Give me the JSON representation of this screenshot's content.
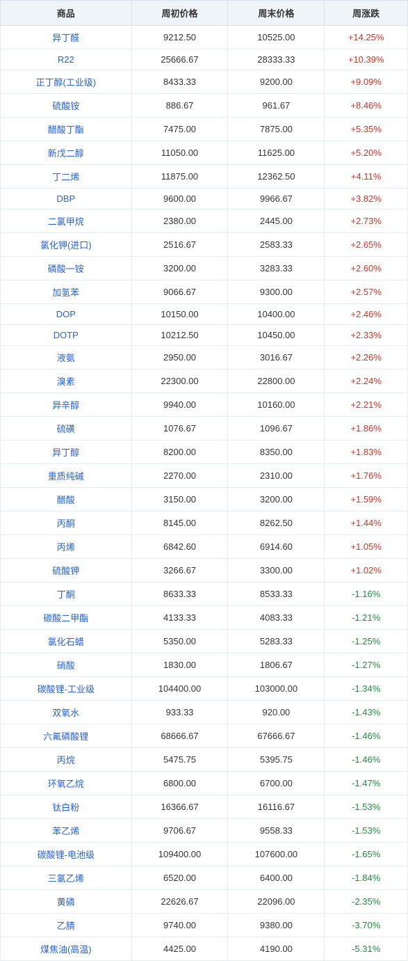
{
  "table": {
    "columns": [
      "商品",
      "周初价格",
      "周末价格",
      "周涨跌"
    ],
    "header_bg": "#eff4f9",
    "header_text_color": "#333333",
    "border_color": "#e8edf3",
    "commodity_text_color": "#2962c9",
    "positive_color": "#d93025",
    "negative_color": "#1e8e3e",
    "font_size": 13,
    "rows": [
      {
        "name": "异丁醛",
        "start": "9212.50",
        "end": "10525.00",
        "change": "+14.25%",
        "dir": "pos"
      },
      {
        "name": "R22",
        "start": "25666.67",
        "end": "28333.33",
        "change": "+10.39%",
        "dir": "pos"
      },
      {
        "name": "正丁醇(工业级)",
        "start": "8433.33",
        "end": "9200.00",
        "change": "+9.09%",
        "dir": "pos"
      },
      {
        "name": "硫酸铵",
        "start": "886.67",
        "end": "961.67",
        "change": "+8.46%",
        "dir": "pos"
      },
      {
        "name": "醋酸丁酯",
        "start": "7475.00",
        "end": "7875.00",
        "change": "+5.35%",
        "dir": "pos"
      },
      {
        "name": "新戊二醇",
        "start": "11050.00",
        "end": "11625.00",
        "change": "+5.20%",
        "dir": "pos"
      },
      {
        "name": "丁二烯",
        "start": "11875.00",
        "end": "12362.50",
        "change": "+4.11%",
        "dir": "pos"
      },
      {
        "name": "DBP",
        "start": "9600.00",
        "end": "9966.67",
        "change": "+3.82%",
        "dir": "pos"
      },
      {
        "name": "二氯甲烷",
        "start": "2380.00",
        "end": "2445.00",
        "change": "+2.73%",
        "dir": "pos"
      },
      {
        "name": "氯化钾(进口)",
        "start": "2516.67",
        "end": "2583.33",
        "change": "+2.65%",
        "dir": "pos"
      },
      {
        "name": "磷酸一铵",
        "start": "3200.00",
        "end": "3283.33",
        "change": "+2.60%",
        "dir": "pos"
      },
      {
        "name": "加氢苯",
        "start": "9066.67",
        "end": "9300.00",
        "change": "+2.57%",
        "dir": "pos"
      },
      {
        "name": "DOP",
        "start": "10150.00",
        "end": "10400.00",
        "change": "+2.46%",
        "dir": "pos"
      },
      {
        "name": "DOTP",
        "start": "10212.50",
        "end": "10450.00",
        "change": "+2.33%",
        "dir": "pos"
      },
      {
        "name": "液氨",
        "start": "2950.00",
        "end": "3016.67",
        "change": "+2.26%",
        "dir": "pos"
      },
      {
        "name": "溴素",
        "start": "22300.00",
        "end": "22800.00",
        "change": "+2.24%",
        "dir": "pos"
      },
      {
        "name": "异辛醇",
        "start": "9940.00",
        "end": "10160.00",
        "change": "+2.21%",
        "dir": "pos"
      },
      {
        "name": "硫磺",
        "start": "1076.67",
        "end": "1096.67",
        "change": "+1.86%",
        "dir": "pos"
      },
      {
        "name": "异丁醇",
        "start": "8200.00",
        "end": "8350.00",
        "change": "+1.83%",
        "dir": "pos"
      },
      {
        "name": "重质纯碱",
        "start": "2270.00",
        "end": "2310.00",
        "change": "+1.76%",
        "dir": "pos"
      },
      {
        "name": "醋酸",
        "start": "3150.00",
        "end": "3200.00",
        "change": "+1.59%",
        "dir": "pos"
      },
      {
        "name": "丙酮",
        "start": "8145.00",
        "end": "8262.50",
        "change": "+1.44%",
        "dir": "pos"
      },
      {
        "name": "丙烯",
        "start": "6842.60",
        "end": "6914.60",
        "change": "+1.05%",
        "dir": "pos"
      },
      {
        "name": "硫酸钾",
        "start": "3266.67",
        "end": "3300.00",
        "change": "+1.02%",
        "dir": "pos"
      },
      {
        "name": "丁酮",
        "start": "8633.33",
        "end": "8533.33",
        "change": "-1.16%",
        "dir": "neg"
      },
      {
        "name": "碳酸二甲酯",
        "start": "4133.33",
        "end": "4083.33",
        "change": "-1.21%",
        "dir": "neg"
      },
      {
        "name": "氯化石蜡",
        "start": "5350.00",
        "end": "5283.33",
        "change": "-1.25%",
        "dir": "neg"
      },
      {
        "name": "硝酸",
        "start": "1830.00",
        "end": "1806.67",
        "change": "-1.27%",
        "dir": "neg"
      },
      {
        "name": "碳酸锂-工业级",
        "start": "104400.00",
        "end": "103000.00",
        "change": "-1.34%",
        "dir": "neg"
      },
      {
        "name": "双氧水",
        "start": "933.33",
        "end": "920.00",
        "change": "-1.43%",
        "dir": "neg"
      },
      {
        "name": "六氟磷酸锂",
        "start": "68666.67",
        "end": "67666.67",
        "change": "-1.46%",
        "dir": "neg"
      },
      {
        "name": "丙烷",
        "start": "5475.75",
        "end": "5395.75",
        "change": "-1.46%",
        "dir": "neg"
      },
      {
        "name": "环氧乙烷",
        "start": "6800.00",
        "end": "6700.00",
        "change": "-1.47%",
        "dir": "neg"
      },
      {
        "name": "钛白粉",
        "start": "16366.67",
        "end": "16116.67",
        "change": "-1.53%",
        "dir": "neg"
      },
      {
        "name": "苯乙烯",
        "start": "9706.67",
        "end": "9558.33",
        "change": "-1.53%",
        "dir": "neg"
      },
      {
        "name": "碳酸锂-电池级",
        "start": "109400.00",
        "end": "107600.00",
        "change": "-1.65%",
        "dir": "neg"
      },
      {
        "name": "三氯乙烯",
        "start": "6520.00",
        "end": "6400.00",
        "change": "-1.84%",
        "dir": "neg"
      },
      {
        "name": "黄磷",
        "start": "22626.67",
        "end": "22096.00",
        "change": "-2.35%",
        "dir": "neg"
      },
      {
        "name": "乙腈",
        "start": "9740.00",
        "end": "9380.00",
        "change": "-3.70%",
        "dir": "neg"
      },
      {
        "name": "煤焦油(高温)",
        "start": "4425.00",
        "end": "4190.00",
        "change": "-5.31%",
        "dir": "neg"
      }
    ]
  }
}
